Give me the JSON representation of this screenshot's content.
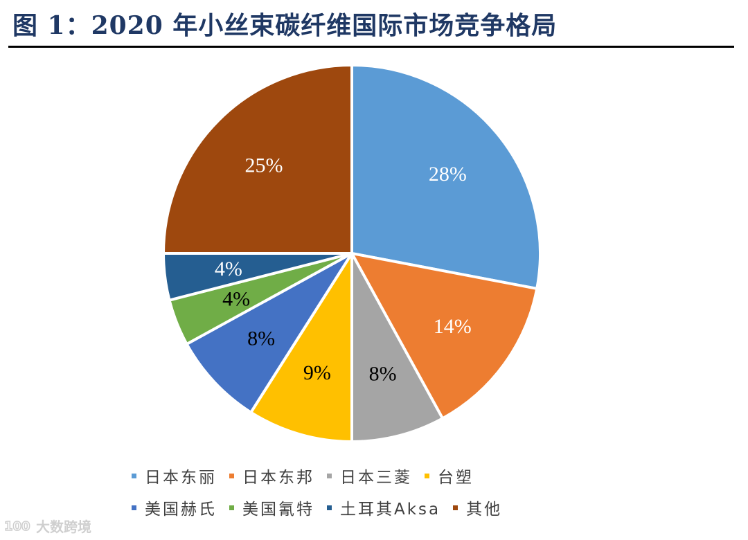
{
  "title": "图 1：2020 年小丝束碳纤维国际市场竞争格局",
  "chart_data": {
    "type": "pie",
    "title": "图 1：2020 年小丝束碳纤维国际市场竞争格局",
    "slices": [
      {
        "name": "日本东丽",
        "value": 28,
        "label": "28%",
        "color": "#5b9bd5",
        "label_color": "#ffffff"
      },
      {
        "name": "日本东邦",
        "value": 14,
        "label": "14%",
        "color": "#ed7d31",
        "label_color": "#ffffff"
      },
      {
        "name": "日本三菱",
        "value": 8,
        "label": "8%",
        "color": "#a5a5a5",
        "label_color": "#000000"
      },
      {
        "name": "台塑",
        "value": 9,
        "label": "9%",
        "color": "#ffc000",
        "label_color": "#000000"
      },
      {
        "name": "美国赫氏",
        "value": 8,
        "label": "8%",
        "color": "#4472c4",
        "label_color": "#000000"
      },
      {
        "name": "美国氰特",
        "value": 4,
        "label": "4%",
        "color": "#70ad47",
        "label_color": "#000000"
      },
      {
        "name": "土耳其Aksa",
        "value": 4,
        "label": "4%",
        "color": "#255e91",
        "label_color": "#ffffff"
      },
      {
        "name": "其他",
        "value": 25,
        "label": "25%",
        "color": "#9e480e",
        "label_color": "#ffffff"
      }
    ],
    "start_angle_deg": 0,
    "direction": "clockwise",
    "legend_position": "bottom"
  },
  "legend": {
    "rows": [
      [
        {
          "label": "日本东丽",
          "color": "#5b9bd5"
        },
        {
          "label": "日本东邦",
          "color": "#ed7d31"
        },
        {
          "label": "日本三菱",
          "color": "#a5a5a5"
        },
        {
          "label": "台塑",
          "color": "#ffc000"
        }
      ],
      [
        {
          "label": "美国赫氏",
          "color": "#4472c4"
        },
        {
          "label": "美国氰特",
          "color": "#70ad47"
        },
        {
          "label": "土耳其Aksa",
          "color": "#255e91"
        },
        {
          "label": "其他",
          "color": "#9e480e"
        }
      ]
    ]
  },
  "watermark": {
    "text": "大数跨境",
    "logo_text": "100"
  }
}
